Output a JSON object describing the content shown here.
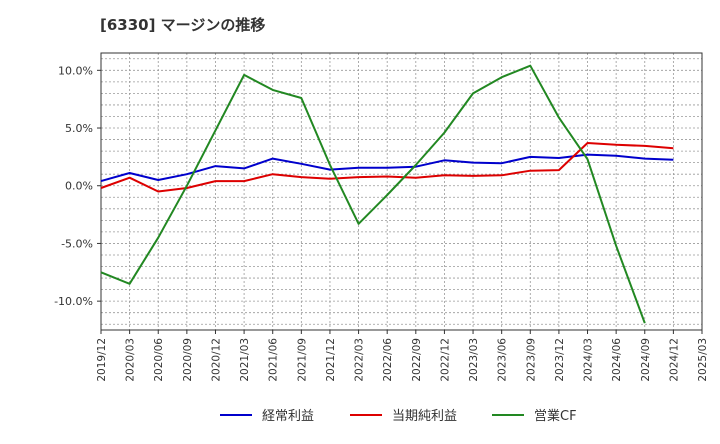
{
  "chart_data": {
    "type": "line",
    "title": "[6330]  マージンの推移",
    "xlabel": "",
    "ylabel": "",
    "x": [
      "2019/12",
      "2020/03",
      "2020/06",
      "2020/09",
      "2020/12",
      "2021/03",
      "2021/06",
      "2021/09",
      "2021/12",
      "2022/03",
      "2022/06",
      "2022/09",
      "2022/12",
      "2023/03",
      "2023/06",
      "2023/09",
      "2023/12",
      "2024/03",
      "2024/06",
      "2024/09",
      "2024/12",
      "2025/03"
    ],
    "ylim": [
      -12.5,
      11.5
    ],
    "yticks": [
      10,
      5,
      0,
      -5,
      -10
    ],
    "ytick_labels": [
      "10.0%",
      "5.0%",
      "0.0%",
      "-5.0%",
      "-10.0%"
    ],
    "grid": true,
    "legend_position": "bottom",
    "series": [
      {
        "name": "経常利益",
        "color": "#0000cc",
        "values": [
          0.4,
          1.1,
          0.5,
          1.0,
          1.7,
          1.5,
          2.35,
          1.9,
          1.4,
          1.55,
          1.55,
          1.65,
          2.2,
          2.0,
          1.95,
          2.5,
          2.4,
          2.7,
          2.6,
          2.35,
          2.25,
          null
        ]
      },
      {
        "name": "当期純利益",
        "color": "#dd0000",
        "values": [
          -0.2,
          0.7,
          -0.5,
          -0.2,
          0.4,
          0.4,
          1.0,
          0.75,
          0.6,
          0.75,
          0.8,
          0.7,
          0.9,
          0.85,
          0.9,
          1.3,
          1.35,
          3.7,
          3.55,
          3.45,
          3.25,
          null
        ]
      },
      {
        "name": "営業CF",
        "color": "#228822",
        "values": [
          -7.5,
          -8.5,
          -4.5,
          0.0,
          4.8,
          9.6,
          8.3,
          7.6,
          1.8,
          -3.3,
          -0.8,
          1.8,
          4.6,
          8.0,
          9.4,
          10.4,
          5.9,
          2.3,
          -5.2,
          -11.9,
          null,
          null
        ]
      }
    ]
  }
}
